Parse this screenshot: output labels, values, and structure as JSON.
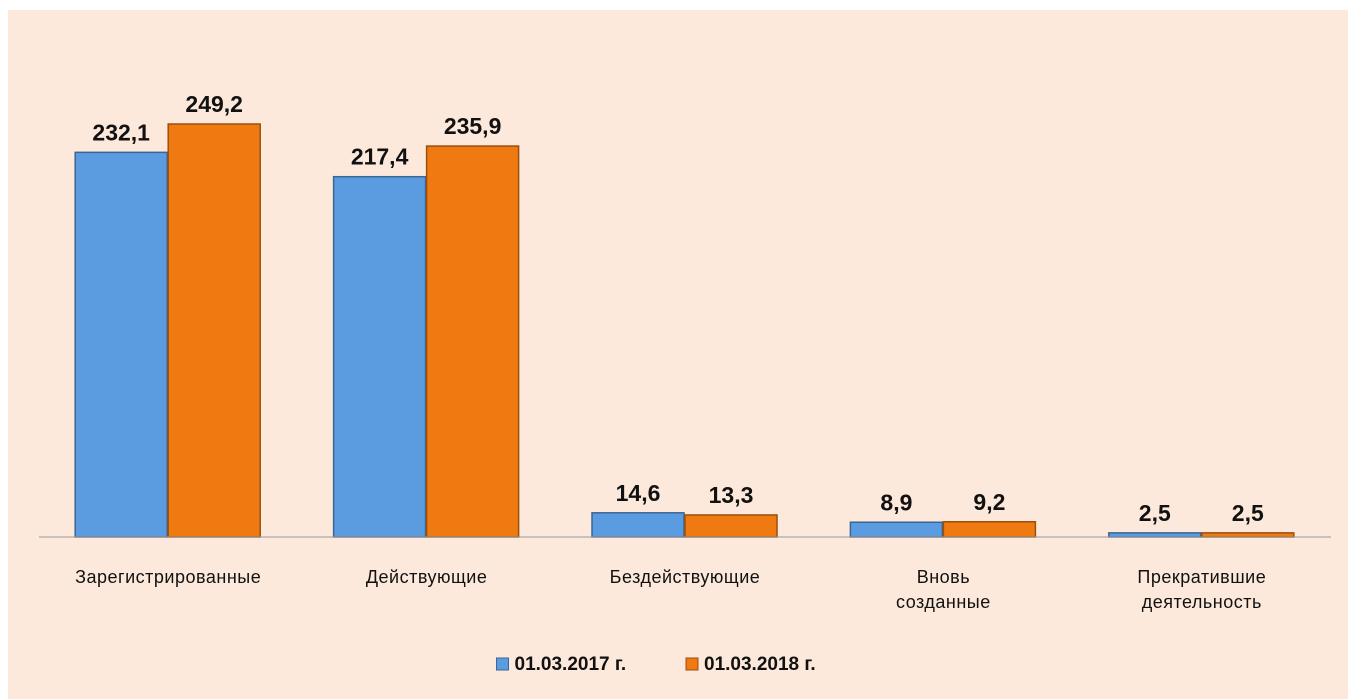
{
  "chart_data": {
    "type": "bar",
    "categories": [
      "Зарегистрированные",
      "Действующие",
      "Бездействующие",
      "Вновь\nсозданные",
      "Прекратившие\nдеятельность"
    ],
    "series": [
      {
        "name": "01.03.2017 г.",
        "color": "#5b9be0",
        "values": [
          232.1,
          217.4,
          14.6,
          8.9,
          2.5
        ],
        "value_labels": [
          "232,1",
          "217,4",
          "14,6",
          "8,9",
          "2,5"
        ]
      },
      {
        "name": "01.03.2018 г.",
        "color": "#f07a12",
        "values": [
          249.2,
          235.9,
          13.3,
          9.2,
          2.5
        ],
        "value_labels": [
          "249,2",
          "235,9",
          "13,3",
          "9,2",
          "2,5"
        ]
      }
    ],
    "legend": "bottom"
  }
}
